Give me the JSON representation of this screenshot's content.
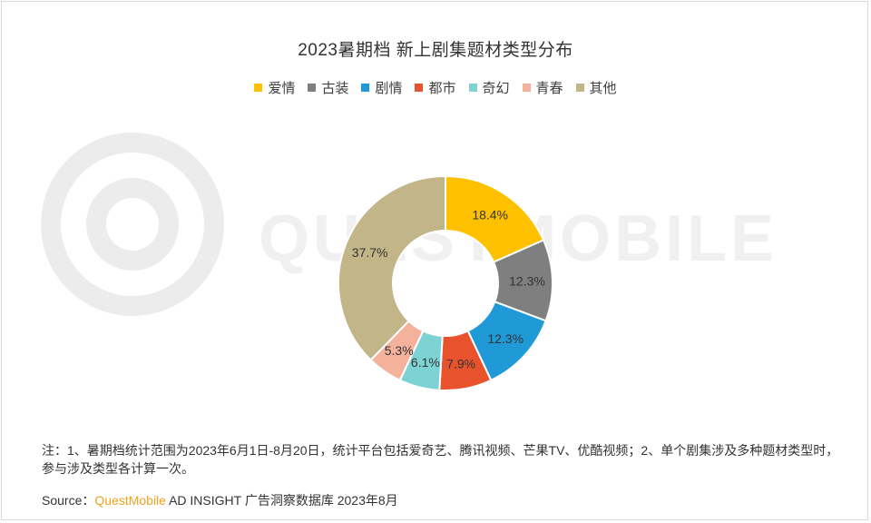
{
  "watermark": {
    "text": "QUESTMOBILE"
  },
  "chart_data": {
    "type": "pie",
    "title": "2023暑期档 新上剧集题材类型分布",
    "legend_position": "top",
    "donut": true,
    "slices": [
      {
        "label": "爱情",
        "value": 18.4,
        "display": "18.4%",
        "color": "#ffc000"
      },
      {
        "label": "古装",
        "value": 12.3,
        "display": "12.3%",
        "color": "#7f7f7f"
      },
      {
        "label": "剧情",
        "value": 12.3,
        "display": "12.3%",
        "color": "#1f9ad6"
      },
      {
        "label": "都市",
        "value": 7.9,
        "display": "7.9%",
        "color": "#e8532d"
      },
      {
        "label": "奇幻",
        "value": 6.1,
        "display": "6.1%",
        "color": "#7dd3d4"
      },
      {
        "label": "青春",
        "value": 5.3,
        "display": "5.3%",
        "color": "#f4b19c"
      },
      {
        "label": "其他",
        "value": 37.7,
        "display": "37.7%",
        "color": "#c2b587"
      }
    ]
  },
  "footer": {
    "note": "注：1、暑期档统计范围为2023年6月1日-8月20日，统计平台包括爱奇艺、腾讯视频、芒果TV、优酷视频；2、单个剧集涉及多种题材类型时，参与涉及类型各计算一次。",
    "source_label": "Source：",
    "source_brand": "QuestMobile",
    "source_rest": " AD INSIGHT 广告洞察数据库 2023年8月"
  }
}
